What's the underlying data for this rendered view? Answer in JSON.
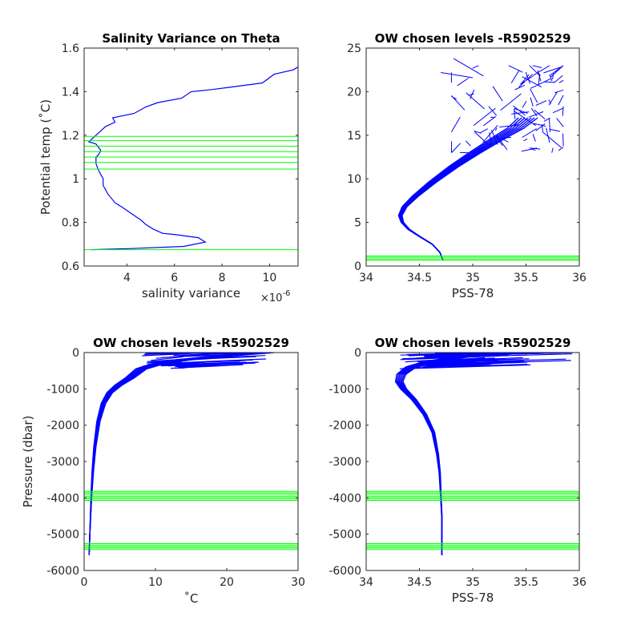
{
  "colors": {
    "profile": "#0000ff",
    "levels": "#00ff00",
    "axes": "#262626"
  },
  "chart_data": [
    {
      "type": "line",
      "title": "Salinity Variance on Theta",
      "xlabel": "salinity variance",
      "x_multiplier": "×10",
      "x_multiplier_exp": "-6",
      "ylabel": "Potential temp (˚C)",
      "xlim": [
        2.2,
        11.2
      ],
      "ylim": [
        0.6,
        1.6
      ],
      "xticks": [
        4,
        6,
        8,
        10
      ],
      "yticks": [
        0.6,
        0.8,
        1,
        1.2,
        1.4,
        1.6
      ],
      "xtick_labels": [
        "4",
        "6",
        "8",
        "10"
      ],
      "ytick_labels": [
        "0.6",
        "0.8",
        "1",
        "1.2",
        "1.4",
        "1.6"
      ],
      "series": [
        {
          "x": [
            2.5,
            4.2,
            6.4,
            7.3,
            7.0,
            6.0,
            5.5,
            5.1,
            4.8,
            4.6,
            4.2,
            3.8,
            3.5,
            3.2,
            3.0,
            3.0,
            2.8,
            2.7,
            2.7,
            2.8,
            2.9,
            2.7,
            2.4,
            2.5,
            2.7,
            3.1,
            3.5,
            3.4,
            4.3,
            4.8,
            5.3,
            6.3,
            6.7,
            7.6,
            8.3,
            9.7,
            10.2,
            11.0,
            11.3
          ],
          "y": [
            0.675,
            0.68,
            0.69,
            0.71,
            0.73,
            0.745,
            0.75,
            0.77,
            0.79,
            0.81,
            0.84,
            0.87,
            0.89,
            0.93,
            0.97,
            1.0,
            1.04,
            1.07,
            1.1,
            1.11,
            1.13,
            1.16,
            1.17,
            1.18,
            1.2,
            1.24,
            1.26,
            1.28,
            1.3,
            1.33,
            1.35,
            1.37,
            1.4,
            1.41,
            1.42,
            1.44,
            1.48,
            1.5,
            1.52
          ]
        }
      ],
      "levels": {
        "orientation": "horizontal",
        "values": [
          0.675,
          1.045,
          1.075,
          1.1,
          1.125,
          1.15,
          1.175,
          1.195
        ]
      }
    },
    {
      "type": "line",
      "title": "OW chosen levels -R5902529",
      "xlabel": "PSS-78",
      "ylabel": "",
      "xlim": [
        34,
        36
      ],
      "ylim": [
        0,
        25
      ],
      "xticks": [
        34,
        34.5,
        35,
        35.5,
        36
      ],
      "yticks": [
        0,
        5,
        10,
        15,
        20,
        25
      ],
      "xtick_labels": [
        "34",
        "34.5",
        "35",
        "35.5",
        "36"
      ],
      "ytick_labels": [
        "0",
        "5",
        "10",
        "15",
        "20",
        "25"
      ],
      "series": [
        {
          "x": [
            34.72,
            34.69,
            34.62,
            34.5,
            34.4,
            34.34,
            34.32,
            34.36,
            34.46,
            34.62,
            34.82,
            35.02,
            35.22,
            35.4,
            35.52
          ],
          "y": [
            0.7,
            1.6,
            2.5,
            3.4,
            4.2,
            5.0,
            5.8,
            6.8,
            8.0,
            9.6,
            11.4,
            13.0,
            14.5,
            15.8,
            17.0
          ]
        }
      ],
      "cloud_region": {
        "x": [
          34.8,
          35.85
        ],
        "y": [
          13,
          23
        ]
      },
      "levels": {
        "orientation": "horizontal",
        "values": [
          0.65,
          0.8,
          1.0,
          1.15
        ]
      }
    },
    {
      "type": "line",
      "title": "OW chosen levels -R5902529",
      "xlabel": "˚C",
      "ylabel": "Pressure (dbar)",
      "xlim": [
        0,
        30
      ],
      "ylim": [
        -6000,
        0
      ],
      "xticks": [
        0,
        10,
        20,
        30
      ],
      "yticks": [
        -6000,
        -5000,
        -4000,
        -3000,
        -2000,
        -1000,
        0
      ],
      "xtick_labels": [
        "0",
        "10",
        "20",
        "30"
      ],
      "ytick_labels": [
        "-6000",
        "-5000",
        "-4000",
        "-3000",
        "-2000",
        "-1000",
        "0"
      ],
      "series": [
        {
          "x": [
            0.7,
            0.8,
            0.9,
            1.0,
            1.2,
            1.5,
            2.0,
            2.7,
            3.6,
            4.8,
            6.4,
            8.0,
            10.5,
            14.0,
            18.0,
            22.0,
            25.0
          ],
          "y": [
            -5580,
            -5000,
            -4500,
            -4000,
            -3300,
            -2600,
            -1900,
            -1400,
            -1100,
            -900,
            -700,
            -450,
            -300,
            -200,
            -120,
            -50,
            0
          ]
        }
      ],
      "levels": {
        "orientation": "horizontal",
        "values": [
          -3820,
          -3860,
          -3900,
          -3950,
          -3990,
          -4030,
          -4070,
          -5260,
          -5300,
          -5340,
          -5380,
          -5420
        ]
      }
    },
    {
      "type": "line",
      "title": "OW chosen levels -R5902529",
      "xlabel": "PSS-78",
      "ylabel": "",
      "xlim": [
        34,
        36
      ],
      "ylim": [
        -6000,
        0
      ],
      "xticks": [
        34,
        34.5,
        35,
        35.5,
        36
      ],
      "yticks": [
        -6000,
        -5000,
        -4000,
        -3000,
        -2000,
        -1000,
        0
      ],
      "xtick_labels": [
        "34",
        "34.5",
        "35",
        "35.5",
        "36"
      ],
      "ytick_labels": [
        "-6000",
        "-5000",
        "-4000",
        "-3000",
        "-2000",
        "-1000",
        "0"
      ],
      "series": [
        {
          "x": [
            34.71,
            34.71,
            34.71,
            34.7,
            34.69,
            34.67,
            34.63,
            34.55,
            34.45,
            34.35,
            34.31,
            34.33,
            34.42,
            34.6,
            34.9,
            35.3,
            35.85
          ],
          "y": [
            -5580,
            -5000,
            -4500,
            -3900,
            -3300,
            -2800,
            -2200,
            -1700,
            -1300,
            -1000,
            -800,
            -600,
            -400,
            -250,
            -120,
            -40,
            0
          ]
        }
      ],
      "levels": {
        "orientation": "horizontal",
        "values": [
          -3820,
          -3860,
          -3900,
          -3950,
          -3990,
          -4030,
          -4070,
          -5260,
          -5300,
          -5340,
          -5380,
          -5420
        ]
      }
    }
  ]
}
